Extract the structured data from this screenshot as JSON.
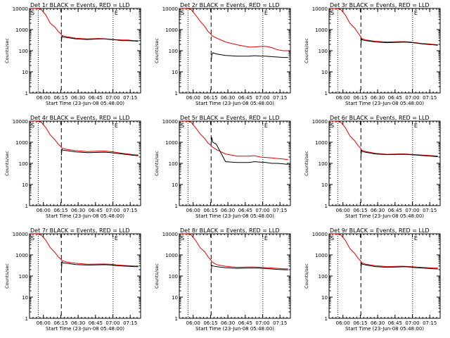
{
  "colors": {
    "events": "#000000",
    "lld": "#e00000",
    "axis": "#000000",
    "background": "#ffffff"
  },
  "shared": {
    "y_label": "Counts/sec",
    "x_label": "Start Time (23-Jun-08 05:48:00)",
    "x_ticks": [
      "06:00",
      "06:15",
      "06:30",
      "06:45",
      "07:00",
      "07:15"
    ],
    "x_tick_minutes": [
      12,
      27,
      42,
      57,
      72,
      87
    ],
    "y_ticks": [
      "1",
      "10",
      "100",
      "1000",
      "10000"
    ],
    "y_tick_values": [
      1,
      10,
      100,
      1000,
      10000
    ],
    "xlim_minutes": [
      0,
      96
    ],
    "ylim": [
      1,
      10000
    ],
    "yscale": "log"
  },
  "chart_data": [
    {
      "type": "line",
      "title": "Det 1r BLACK = Events, RED = LLD",
      "corner_marks": [
        "S",
        "E"
      ],
      "dotted_lines_min": [
        7.5,
        72.2
      ],
      "dashed_line_min": 27.5,
      "series": [
        {
          "name": "LLD",
          "color": "red",
          "x": [
            0,
            6,
            10,
            14,
            18,
            22,
            25,
            27.5,
            28,
            32,
            40,
            50,
            60,
            65,
            70,
            75,
            80,
            85,
            90,
            94
          ],
          "y": [
            10000,
            10000,
            9000,
            5000,
            2000,
            1300,
            800,
            600,
            520,
            460,
            390,
            360,
            380,
            370,
            350,
            330,
            320,
            320,
            300,
            300
          ]
        },
        {
          "name": "Events",
          "color": "black",
          "x": [
            27.5,
            28,
            29,
            32,
            40,
            50,
            60,
            65,
            70,
            75,
            80,
            85,
            90,
            94
          ],
          "y": [
            260,
            500,
            440,
            420,
            360,
            340,
            360,
            360,
            340,
            320,
            300,
            300,
            290,
            280
          ]
        }
      ]
    },
    {
      "type": "line",
      "title": "Det 2r BLACK = Events, RED = LLD",
      "corner_marks": [
        "S",
        "E"
      ],
      "dotted_lines_min": [
        7.5,
        72.2
      ],
      "dashed_line_min": 27.5,
      "series": [
        {
          "name": "LLD",
          "color": "red",
          "x": [
            0,
            6,
            10,
            14,
            18,
            22,
            25,
            27.5,
            28,
            32,
            40,
            50,
            60,
            65,
            70,
            75,
            80,
            85,
            90,
            94
          ],
          "y": [
            10000,
            10000,
            9000,
            5000,
            2500,
            1400,
            800,
            600,
            520,
            400,
            260,
            190,
            150,
            150,
            160,
            160,
            140,
            110,
            100,
            100
          ]
        },
        {
          "name": "Events",
          "color": "black",
          "x": [
            27.5,
            28,
            29,
            32,
            40,
            50,
            60,
            65,
            70,
            75,
            80,
            85,
            90,
            94
          ],
          "y": [
            30,
            60,
            80,
            70,
            60,
            55,
            55,
            58,
            56,
            55,
            52,
            50,
            48,
            48
          ]
        }
      ]
    },
    {
      "type": "line",
      "title": "Det 3r BLACK = Events, RED = LLD",
      "corner_marks": [
        "S",
        "E"
      ],
      "dotted_lines_min": [
        7.5,
        72.2
      ],
      "dashed_line_min": 27.5,
      "series": [
        {
          "name": "LLD",
          "color": "red",
          "x": [
            0,
            6,
            10,
            14,
            18,
            22,
            25,
            27.5,
            28,
            32,
            40,
            50,
            60,
            65,
            70,
            75,
            80,
            85,
            90,
            94
          ],
          "y": [
            10000,
            10000,
            9000,
            5000,
            2000,
            1200,
            700,
            450,
            380,
            320,
            280,
            260,
            270,
            270,
            260,
            240,
            220,
            210,
            200,
            190
          ]
        },
        {
          "name": "Events",
          "color": "black",
          "x": [
            27.5,
            28,
            29,
            32,
            40,
            50,
            60,
            65,
            70,
            75,
            80,
            85,
            90,
            94
          ],
          "y": [
            180,
            360,
            320,
            300,
            260,
            240,
            250,
            255,
            245,
            230,
            210,
            200,
            190,
            180
          ]
        }
      ]
    },
    {
      "type": "line",
      "title": "Det 4r BLACK = Events, RED = LLD",
      "corner_marks": [
        "S",
        "E"
      ],
      "dotted_lines_min": [
        7.5,
        72.2
      ],
      "dashed_line_min": 27.5,
      "series": [
        {
          "name": "LLD",
          "color": "red",
          "x": [
            0,
            6,
            10,
            14,
            18,
            22,
            25,
            27.5,
            28,
            32,
            40,
            50,
            60,
            65,
            70,
            75,
            80,
            85,
            90,
            94
          ],
          "y": [
            10000,
            10000,
            9000,
            5000,
            2200,
            1300,
            800,
            600,
            520,
            460,
            400,
            360,
            380,
            380,
            360,
            330,
            300,
            280,
            260,
            250
          ]
        },
        {
          "name": "Events",
          "color": "black",
          "x": [
            27.5,
            28,
            29,
            32,
            40,
            50,
            60,
            65,
            70,
            75,
            80,
            85,
            90,
            94
          ],
          "y": [
            240,
            460,
            420,
            400,
            350,
            320,
            330,
            340,
            320,
            300,
            280,
            260,
            240,
            230
          ]
        }
      ]
    },
    {
      "type": "line",
      "title": "Det 5r BLACK = Events, RED = LLD",
      "corner_marks": [
        "S",
        "E"
      ],
      "dotted_lines_min": [
        7.5,
        72.2
      ],
      "dashed_line_min": 27.5,
      "series": [
        {
          "name": "LLD",
          "color": "red",
          "x": [
            0,
            6,
            10,
            14,
            18,
            22,
            25,
            27.5,
            28,
            32,
            40,
            50,
            60,
            65,
            70,
            75,
            80,
            85,
            90,
            94
          ],
          "y": [
            10000,
            10000,
            9000,
            5000,
            2500,
            1500,
            900,
            700,
            620,
            450,
            280,
            220,
            220,
            230,
            200,
            190,
            180,
            170,
            160,
            150
          ]
        },
        {
          "name": "Events",
          "color": "black",
          "x": [
            27.5,
            28,
            29,
            32,
            40,
            50,
            60,
            65,
            70,
            75,
            80,
            85,
            90,
            94
          ],
          "y": [
            900,
            1700,
            1000,
            800,
            120,
            110,
            110,
            120,
            115,
            110,
            100,
            100,
            95,
            90
          ]
        }
      ]
    },
    {
      "type": "line",
      "title": "Det 6r BLACK = Events, RED = LLD",
      "corner_marks": [
        "S",
        "E"
      ],
      "dotted_lines_min": [
        7.5,
        72.2
      ],
      "dashed_line_min": 27.5,
      "series": [
        {
          "name": "LLD",
          "color": "red",
          "x": [
            0,
            6,
            10,
            14,
            18,
            22,
            25,
            27.5,
            28,
            32,
            40,
            50,
            60,
            65,
            70,
            75,
            80,
            85,
            90,
            94
          ],
          "y": [
            10000,
            10000,
            9000,
            5000,
            2000,
            1200,
            700,
            500,
            430,
            360,
            300,
            270,
            280,
            280,
            270,
            260,
            250,
            240,
            230,
            220
          ]
        },
        {
          "name": "Events",
          "color": "black",
          "x": [
            27.5,
            28,
            29,
            32,
            40,
            50,
            60,
            65,
            70,
            75,
            80,
            85,
            90,
            94
          ],
          "y": [
            200,
            400,
            360,
            330,
            280,
            260,
            265,
            270,
            260,
            250,
            235,
            225,
            215,
            205
          ]
        }
      ]
    },
    {
      "type": "line",
      "title": "Det 7r BLACK = Events, RED = LLD",
      "corner_marks": [
        "S",
        "E"
      ],
      "dotted_lines_min": [
        7.5,
        72.2
      ],
      "dashed_line_min": 27.5,
      "series": [
        {
          "name": "LLD",
          "color": "red",
          "x": [
            0,
            6,
            10,
            14,
            18,
            22,
            25,
            27.5,
            28,
            32,
            40,
            50,
            60,
            65,
            70,
            75,
            80,
            85,
            90,
            94
          ],
          "y": [
            10000,
            10000,
            9000,
            5000,
            2200,
            1300,
            800,
            600,
            540,
            460,
            400,
            360,
            370,
            370,
            360,
            340,
            320,
            310,
            300,
            300
          ]
        },
        {
          "name": "Events",
          "color": "black",
          "x": [
            27.5,
            28,
            29,
            32,
            40,
            50,
            60,
            65,
            70,
            75,
            80,
            85,
            90,
            94
          ],
          "y": [
            160,
            480,
            420,
            400,
            350,
            330,
            340,
            345,
            330,
            310,
            300,
            290,
            280,
            275
          ]
        }
      ]
    },
    {
      "type": "line",
      "title": "Det 8r BLACK = Events, RED = LLD",
      "corner_marks": [
        "S",
        "E"
      ],
      "dotted_lines_min": [
        7.5,
        72.2
      ],
      "dashed_line_min": 27.5,
      "series": [
        {
          "name": "LLD",
          "color": "red",
          "x": [
            0,
            6,
            10,
            14,
            18,
            22,
            25,
            27.5,
            28,
            32,
            40,
            50,
            60,
            65,
            70,
            75,
            80,
            85,
            90,
            94
          ],
          "y": [
            10000,
            10000,
            9000,
            5000,
            2200,
            1400,
            800,
            550,
            480,
            350,
            290,
            260,
            270,
            270,
            260,
            250,
            240,
            230,
            220,
            220
          ]
        },
        {
          "name": "Events",
          "color": "black",
          "x": [
            27.5,
            28,
            29,
            32,
            40,
            50,
            60,
            65,
            70,
            75,
            80,
            85,
            90,
            94
          ],
          "y": [
            160,
            320,
            300,
            280,
            250,
            230,
            240,
            240,
            235,
            225,
            215,
            205,
            200,
            195
          ]
        }
      ]
    },
    {
      "type": "line",
      "title": "Det 9r BLACK = Events, RED = LLD",
      "corner_marks": [
        "S",
        "E"
      ],
      "dotted_lines_min": [
        7.5,
        72.2
      ],
      "dashed_line_min": 27.5,
      "series": [
        {
          "name": "LLD",
          "color": "red",
          "x": [
            0,
            6,
            10,
            14,
            18,
            22,
            25,
            27.5,
            28,
            32,
            40,
            50,
            60,
            65,
            70,
            75,
            80,
            85,
            90,
            94
          ],
          "y": [
            10000,
            10000,
            9000,
            5000,
            2000,
            1200,
            700,
            500,
            430,
            360,
            310,
            280,
            290,
            290,
            280,
            270,
            260,
            250,
            240,
            240
          ]
        },
        {
          "name": "Events",
          "color": "black",
          "x": [
            27.5,
            28,
            29,
            32,
            40,
            50,
            60,
            65,
            70,
            75,
            80,
            85,
            90,
            94
          ],
          "y": [
            190,
            400,
            360,
            330,
            280,
            260,
            270,
            275,
            265,
            250,
            240,
            230,
            220,
            215
          ]
        }
      ]
    }
  ]
}
